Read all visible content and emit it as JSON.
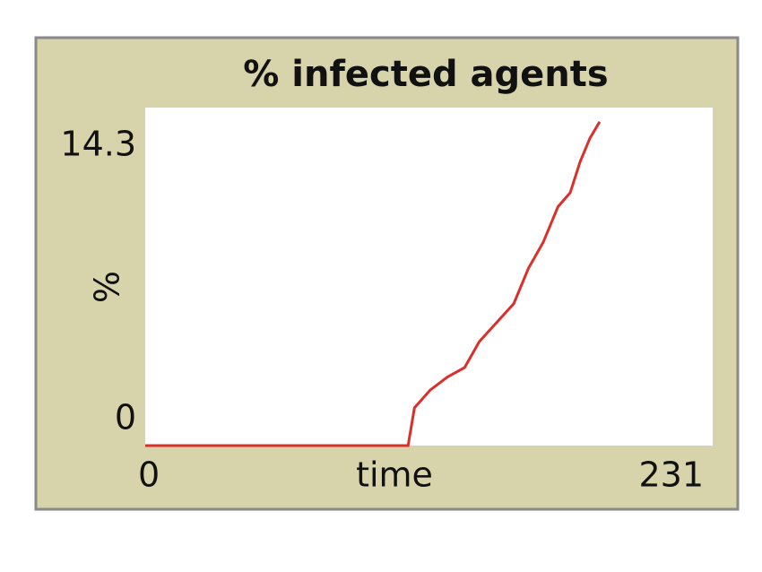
{
  "chart_data": {
    "type": "line",
    "title": "% infected agents",
    "x_label": "time",
    "y_label": "%",
    "x": [
      0,
      107,
      109.6,
      116,
      123,
      130,
      136,
      143,
      150,
      156,
      162,
      168,
      173,
      177,
      181,
      185
    ],
    "series": [
      {
        "name": "infected",
        "color": "#d9302c",
        "values": [
          0,
          0,
          1.6,
          2.35,
          2.9,
          3.3,
          4.4,
          5.2,
          6.0,
          7.5,
          8.6,
          10.1,
          10.7,
          12.0,
          13.0,
          13.7
        ]
      }
    ],
    "xlim": [
      0,
      231
    ],
    "xticks": [
      0,
      231
    ],
    "ylim": [
      0,
      14.3
    ],
    "yticks": [
      0,
      14.3
    ]
  }
}
